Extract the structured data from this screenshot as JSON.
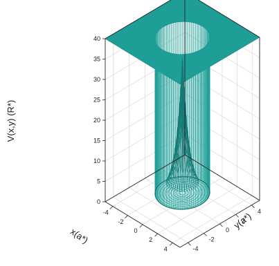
{
  "chart_data": {
    "type": "surface3d",
    "title": "",
    "xlabel": "x(a*)",
    "ylabel": "y(a*)",
    "zlabel": "V(x,y) (R*)",
    "x_ticks": [
      "-4",
      "-2",
      "0",
      "2",
      "4"
    ],
    "y_ticks": [
      "-4",
      "-2",
      "0",
      "2",
      "4"
    ],
    "z_ticks": [
      "0",
      "5",
      "10",
      "15",
      "20",
      "25",
      "30",
      "35",
      "40"
    ],
    "xlim": [
      -5,
      5
    ],
    "ylim": [
      -5,
      5
    ],
    "zlim": [
      0,
      40
    ],
    "grid": true,
    "surface_color": "#1f9e97",
    "surface": {
      "description_note_none": null,
      "outer_plateau_value": 40,
      "well_radius": 2.5,
      "well_floor_value": 2,
      "central_peak_value": 35,
      "central_peak_width": 0.6
    }
  }
}
